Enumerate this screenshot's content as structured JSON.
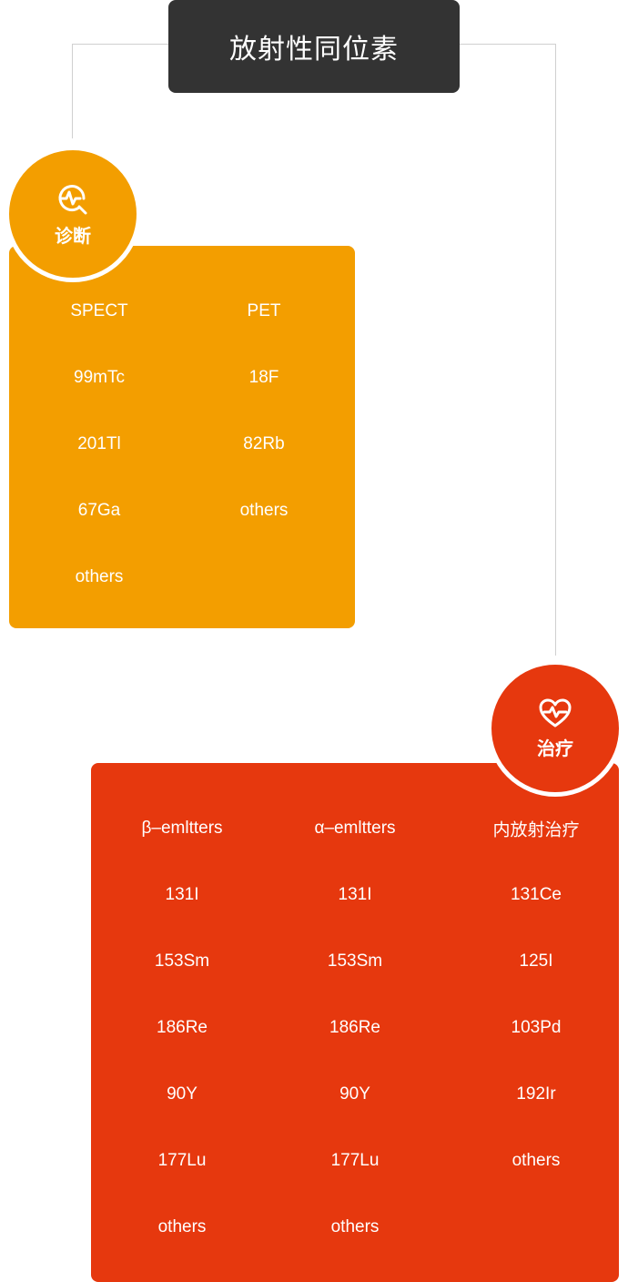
{
  "title": "放射性同位素",
  "colors": {
    "title_bg": "#333333",
    "diagnosis": "#f39e00",
    "treatment": "#e6380e",
    "connector": "#d0d0d0"
  },
  "diagnosis": {
    "label": "诊断",
    "icon": "diagnosis-search-pulse-icon",
    "columns": [
      {
        "header": "SPECT",
        "items": [
          "99mTc",
          "201Tl",
          "67Ga",
          "others"
        ]
      },
      {
        "header": "PET",
        "items": [
          "18F",
          "82Rb",
          "others"
        ]
      }
    ]
  },
  "treatment": {
    "label": "治疗",
    "icon": "heart-pulse-icon",
    "columns": [
      {
        "header": "β–emltters",
        "items": [
          "131I",
          "153Sm",
          "186Re",
          "90Y",
          "177Lu",
          "others"
        ]
      },
      {
        "header": "α–emltters",
        "items": [
          "131I",
          "153Sm",
          "186Re",
          "90Y",
          "177Lu",
          "others"
        ]
      },
      {
        "header": "内放射治疗",
        "items": [
          "131Ce",
          "125I",
          "103Pd",
          "192Ir",
          "others"
        ]
      }
    ]
  }
}
